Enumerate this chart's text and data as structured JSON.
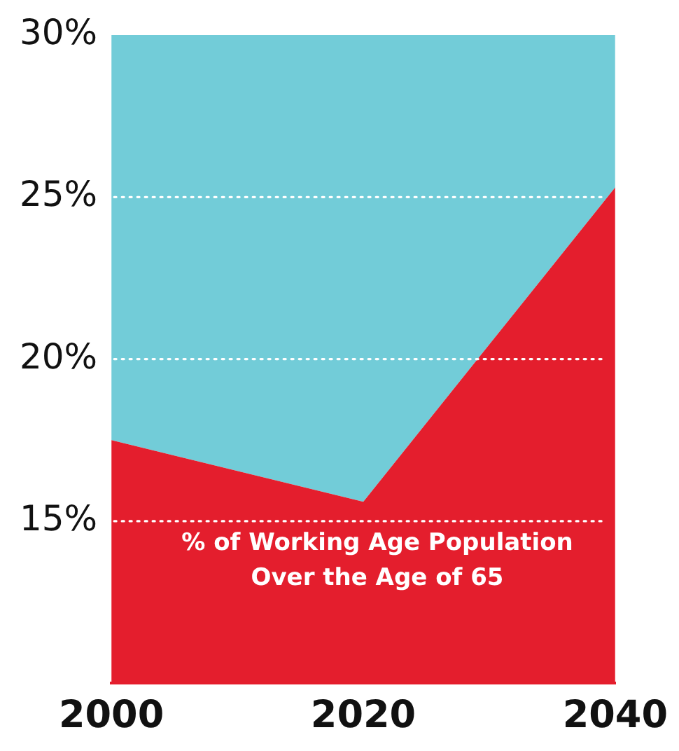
{
  "chart_data": {
    "type": "area",
    "categories": [
      "2000",
      "2020",
      "2040"
    ],
    "series": [
      {
        "color": "#e41e2d",
        "values": [
          17.5,
          15.6,
          25.3
        ]
      },
      {
        "color": "#72ccd8",
        "values": [
          30,
          30,
          30
        ]
      }
    ],
    "ylim": [
      10,
      30
    ],
    "yticks": [
      {
        "value": 15,
        "label": "15%"
      },
      {
        "value": 20,
        "label": "20%"
      },
      {
        "value": 25,
        "label": "25%"
      },
      {
        "value": 30,
        "label": "30%"
      }
    ],
    "grid": "y",
    "line_style": "dotted",
    "annotations": [
      "% of Working Age Population\nOver the Age of 65"
    ]
  }
}
